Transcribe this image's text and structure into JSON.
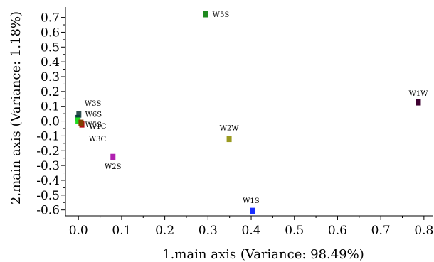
{
  "chart_data": {
    "type": "scatter",
    "title": "",
    "xlabel": "1.main axis (Variance: 98.49%)",
    "ylabel": "2.main axis (Variance: 1.18%)",
    "xlim": [
      -0.03,
      0.82
    ],
    "ylim": [
      -0.64,
      0.77
    ],
    "xticks": [
      "0.0",
      "0.1",
      "0.2",
      "0.3",
      "0.4",
      "0.5",
      "0.6",
      "0.7",
      "0.8"
    ],
    "yticks": [
      "0.7",
      "0.6",
      "0.5",
      "0.4",
      "0.3",
      "0.2",
      "0.1",
      "0.0",
      "-0.1",
      "-0.2",
      "-0.3",
      "-0.4",
      "-0.5",
      "-0.6"
    ],
    "grid": false,
    "points": [
      {
        "label": "W5S",
        "x": 0.294,
        "y": 0.722,
        "color": "#1f8a1f"
      },
      {
        "label": "W1W",
        "x": 0.787,
        "y": 0.127,
        "color": "#3d0030"
      },
      {
        "label": "W3S",
        "x": 0.001,
        "y": 0.045,
        "color": "#2f4f4f"
      },
      {
        "label": "W6S",
        "x": -0.001,
        "y": 0.02,
        "color": "#0b3d3d"
      },
      {
        "label": "W5S",
        "x": -0.001,
        "y": 0.003,
        "color": "#22dd22"
      },
      {
        "label": "W1C",
        "x": 0.008,
        "y": -0.022,
        "color": "#b01010"
      },
      {
        "label": "W3C",
        "x": 0.006,
        "y": -0.012,
        "color": "#804000"
      },
      {
        "label": "W2W",
        "x": 0.349,
        "y": -0.12,
        "color": "#9a9a20"
      },
      {
        "label": "W2S",
        "x": 0.08,
        "y": -0.243,
        "color": "#b020b0"
      },
      {
        "label": "W1S",
        "x": 0.403,
        "y": -0.607,
        "color": "#1a2fff"
      }
    ]
  }
}
